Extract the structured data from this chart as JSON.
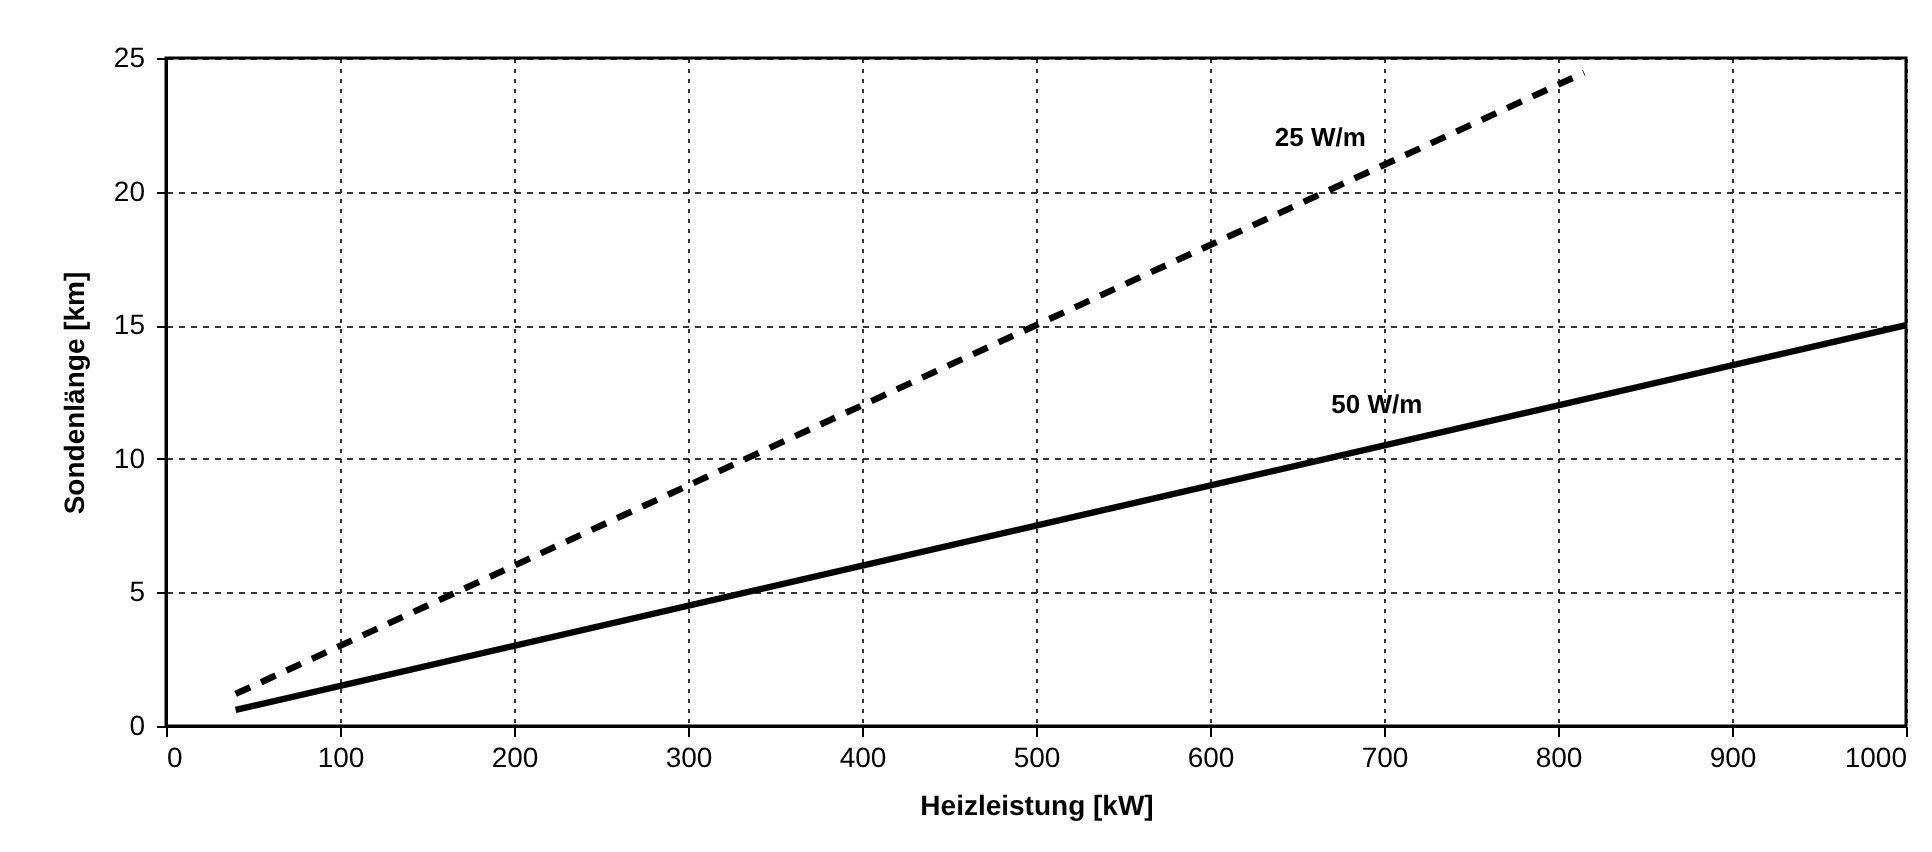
{
  "chart_data": {
    "type": "line",
    "xlabel": "Heizleistung [kW]",
    "ylabel": "Sondenlänge [km]",
    "xlim": [
      0,
      1000
    ],
    "xticks": [
      0,
      100,
      200,
      300,
      400,
      500,
      600,
      700,
      800,
      900,
      1000
    ],
    "ylim": [
      0,
      25
    ],
    "yticks": [
      0,
      5,
      10,
      15,
      20,
      25
    ],
    "grid": true,
    "marker": "none",
    "series": [
      {
        "name": "25 W/m",
        "color": "#000000",
        "line_style": "dashed",
        "x": [
          40,
          815
        ],
        "values": [
          1.2,
          24.45
        ]
      },
      {
        "name": "50 W/m",
        "color": "#000000",
        "line_style": "solid",
        "x": [
          40,
          1000
        ],
        "values": [
          0.6,
          15
        ]
      }
    ]
  }
}
